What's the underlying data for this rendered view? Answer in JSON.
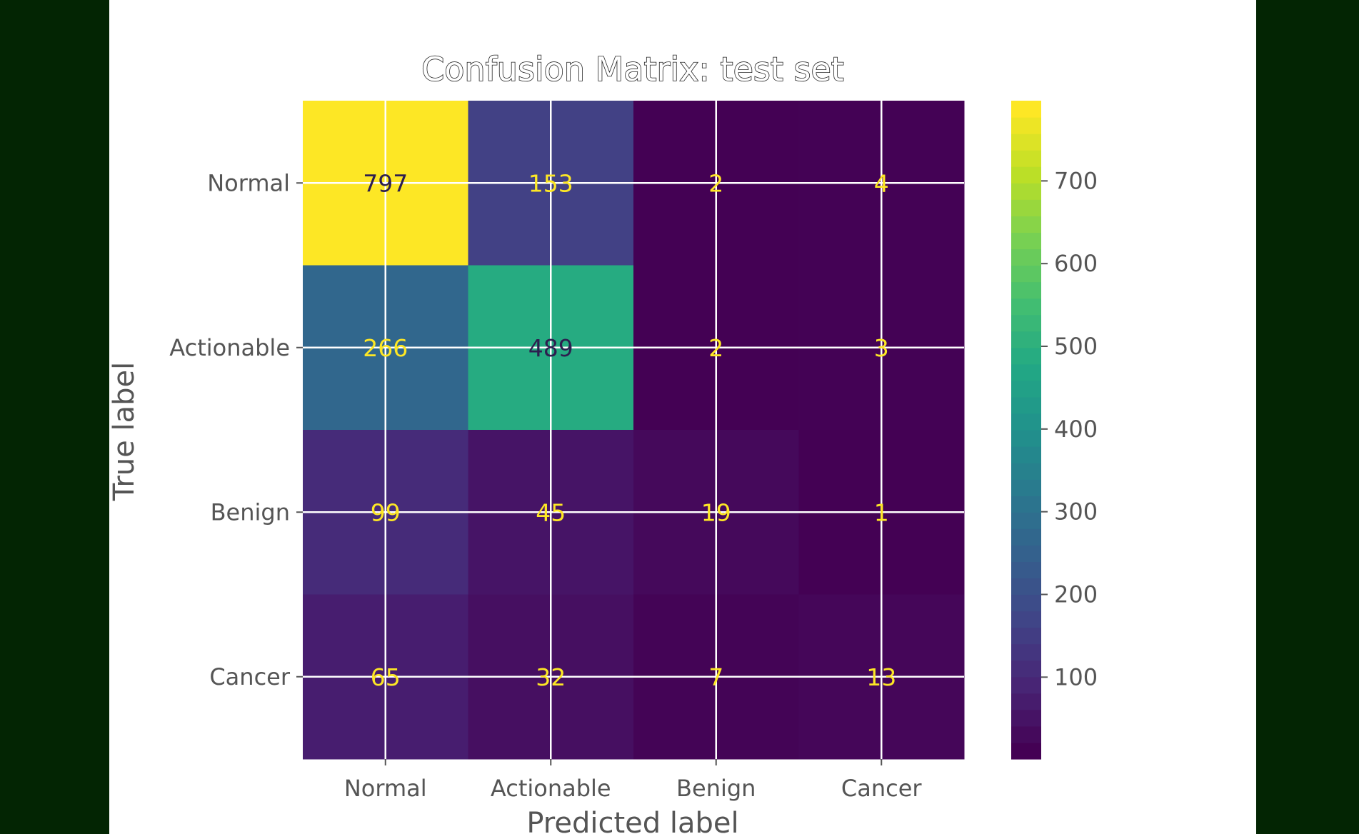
{
  "chart_data": {
    "type": "heatmap",
    "title": "Confusion Matrix: test set",
    "xlabel": "Predicted label",
    "ylabel": "True label",
    "x_categories": [
      "Normal",
      "Actionable",
      "Benign",
      "Cancer"
    ],
    "y_categories": [
      "Normal",
      "Actionable",
      "Benign",
      "Cancer"
    ],
    "values": [
      [
        797,
        153,
        2,
        4
      ],
      [
        266,
        489,
        2,
        3
      ],
      [
        99,
        45,
        19,
        1
      ],
      [
        65,
        32,
        7,
        13
      ]
    ],
    "colormap": "viridis",
    "colorbar": {
      "min": 1,
      "max": 797,
      "ticks": [
        100,
        200,
        300,
        400,
        500,
        600,
        700
      ]
    },
    "grid": true
  }
}
